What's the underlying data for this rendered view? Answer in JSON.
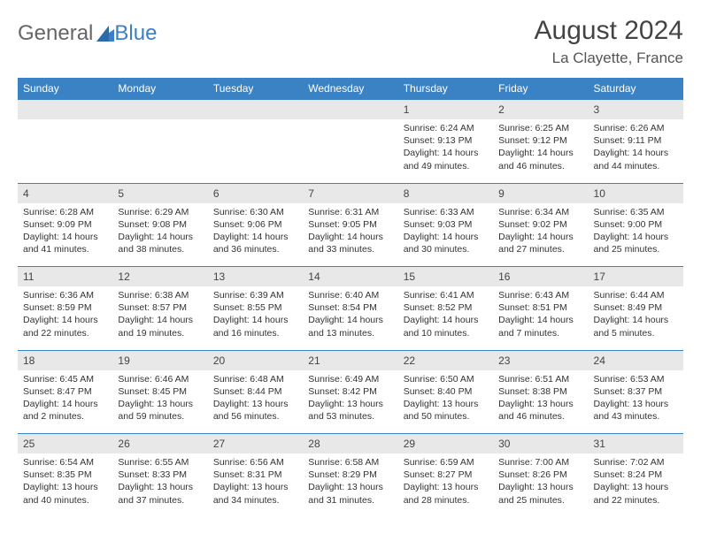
{
  "logo": {
    "part1": "General",
    "part2": "Blue"
  },
  "header": {
    "title": "August 2024",
    "subtitle": "La Clayette, France"
  },
  "colors": {
    "header_bg": "#3b82c4",
    "header_fg": "#ffffff",
    "daynum_bg": "#e8e8e8",
    "border": "#3b82c4"
  },
  "dayNames": [
    "Sunday",
    "Monday",
    "Tuesday",
    "Wednesday",
    "Thursday",
    "Friday",
    "Saturday"
  ],
  "weeks": [
    [
      {
        "n": "",
        "sr": "",
        "ss": "",
        "dl": ""
      },
      {
        "n": "",
        "sr": "",
        "ss": "",
        "dl": ""
      },
      {
        "n": "",
        "sr": "",
        "ss": "",
        "dl": ""
      },
      {
        "n": "",
        "sr": "",
        "ss": "",
        "dl": ""
      },
      {
        "n": "1",
        "sr": "Sunrise: 6:24 AM",
        "ss": "Sunset: 9:13 PM",
        "dl": "Daylight: 14 hours and 49 minutes."
      },
      {
        "n": "2",
        "sr": "Sunrise: 6:25 AM",
        "ss": "Sunset: 9:12 PM",
        "dl": "Daylight: 14 hours and 46 minutes."
      },
      {
        "n": "3",
        "sr": "Sunrise: 6:26 AM",
        "ss": "Sunset: 9:11 PM",
        "dl": "Daylight: 14 hours and 44 minutes."
      }
    ],
    [
      {
        "n": "4",
        "sr": "Sunrise: 6:28 AM",
        "ss": "Sunset: 9:09 PM",
        "dl": "Daylight: 14 hours and 41 minutes."
      },
      {
        "n": "5",
        "sr": "Sunrise: 6:29 AM",
        "ss": "Sunset: 9:08 PM",
        "dl": "Daylight: 14 hours and 38 minutes."
      },
      {
        "n": "6",
        "sr": "Sunrise: 6:30 AM",
        "ss": "Sunset: 9:06 PM",
        "dl": "Daylight: 14 hours and 36 minutes."
      },
      {
        "n": "7",
        "sr": "Sunrise: 6:31 AM",
        "ss": "Sunset: 9:05 PM",
        "dl": "Daylight: 14 hours and 33 minutes."
      },
      {
        "n": "8",
        "sr": "Sunrise: 6:33 AM",
        "ss": "Sunset: 9:03 PM",
        "dl": "Daylight: 14 hours and 30 minutes."
      },
      {
        "n": "9",
        "sr": "Sunrise: 6:34 AM",
        "ss": "Sunset: 9:02 PM",
        "dl": "Daylight: 14 hours and 27 minutes."
      },
      {
        "n": "10",
        "sr": "Sunrise: 6:35 AM",
        "ss": "Sunset: 9:00 PM",
        "dl": "Daylight: 14 hours and 25 minutes."
      }
    ],
    [
      {
        "n": "11",
        "sr": "Sunrise: 6:36 AM",
        "ss": "Sunset: 8:59 PM",
        "dl": "Daylight: 14 hours and 22 minutes."
      },
      {
        "n": "12",
        "sr": "Sunrise: 6:38 AM",
        "ss": "Sunset: 8:57 PM",
        "dl": "Daylight: 14 hours and 19 minutes."
      },
      {
        "n": "13",
        "sr": "Sunrise: 6:39 AM",
        "ss": "Sunset: 8:55 PM",
        "dl": "Daylight: 14 hours and 16 minutes."
      },
      {
        "n": "14",
        "sr": "Sunrise: 6:40 AM",
        "ss": "Sunset: 8:54 PM",
        "dl": "Daylight: 14 hours and 13 minutes."
      },
      {
        "n": "15",
        "sr": "Sunrise: 6:41 AM",
        "ss": "Sunset: 8:52 PM",
        "dl": "Daylight: 14 hours and 10 minutes."
      },
      {
        "n": "16",
        "sr": "Sunrise: 6:43 AM",
        "ss": "Sunset: 8:51 PM",
        "dl": "Daylight: 14 hours and 7 minutes."
      },
      {
        "n": "17",
        "sr": "Sunrise: 6:44 AM",
        "ss": "Sunset: 8:49 PM",
        "dl": "Daylight: 14 hours and 5 minutes."
      }
    ],
    [
      {
        "n": "18",
        "sr": "Sunrise: 6:45 AM",
        "ss": "Sunset: 8:47 PM",
        "dl": "Daylight: 14 hours and 2 minutes."
      },
      {
        "n": "19",
        "sr": "Sunrise: 6:46 AM",
        "ss": "Sunset: 8:45 PM",
        "dl": "Daylight: 13 hours and 59 minutes."
      },
      {
        "n": "20",
        "sr": "Sunrise: 6:48 AM",
        "ss": "Sunset: 8:44 PM",
        "dl": "Daylight: 13 hours and 56 minutes."
      },
      {
        "n": "21",
        "sr": "Sunrise: 6:49 AM",
        "ss": "Sunset: 8:42 PM",
        "dl": "Daylight: 13 hours and 53 minutes."
      },
      {
        "n": "22",
        "sr": "Sunrise: 6:50 AM",
        "ss": "Sunset: 8:40 PM",
        "dl": "Daylight: 13 hours and 50 minutes."
      },
      {
        "n": "23",
        "sr": "Sunrise: 6:51 AM",
        "ss": "Sunset: 8:38 PM",
        "dl": "Daylight: 13 hours and 46 minutes."
      },
      {
        "n": "24",
        "sr": "Sunrise: 6:53 AM",
        "ss": "Sunset: 8:37 PM",
        "dl": "Daylight: 13 hours and 43 minutes."
      }
    ],
    [
      {
        "n": "25",
        "sr": "Sunrise: 6:54 AM",
        "ss": "Sunset: 8:35 PM",
        "dl": "Daylight: 13 hours and 40 minutes."
      },
      {
        "n": "26",
        "sr": "Sunrise: 6:55 AM",
        "ss": "Sunset: 8:33 PM",
        "dl": "Daylight: 13 hours and 37 minutes."
      },
      {
        "n": "27",
        "sr": "Sunrise: 6:56 AM",
        "ss": "Sunset: 8:31 PM",
        "dl": "Daylight: 13 hours and 34 minutes."
      },
      {
        "n": "28",
        "sr": "Sunrise: 6:58 AM",
        "ss": "Sunset: 8:29 PM",
        "dl": "Daylight: 13 hours and 31 minutes."
      },
      {
        "n": "29",
        "sr": "Sunrise: 6:59 AM",
        "ss": "Sunset: 8:27 PM",
        "dl": "Daylight: 13 hours and 28 minutes."
      },
      {
        "n": "30",
        "sr": "Sunrise: 7:00 AM",
        "ss": "Sunset: 8:26 PM",
        "dl": "Daylight: 13 hours and 25 minutes."
      },
      {
        "n": "31",
        "sr": "Sunrise: 7:02 AM",
        "ss": "Sunset: 8:24 PM",
        "dl": "Daylight: 13 hours and 22 minutes."
      }
    ]
  ]
}
